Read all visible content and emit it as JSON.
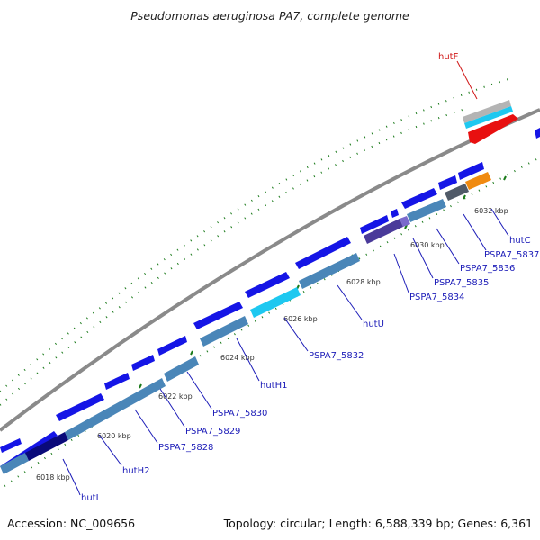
{
  "title": "Pseudomonas aeruginosa PA7, complete genome",
  "footer": {
    "accession": "Accession: NC_009656",
    "summary": "Topology: circular; Length: 6,588,339 bp; Genes: 6,361"
  },
  "colors": {
    "backbone": "#8a8a8a",
    "forward_gene": "#1515e6",
    "reverse_gene": "#4a86b8",
    "highlight_cyan": "#1ec8f0",
    "dark_navy": "#0a0a7a",
    "purple": "#4a3a9a",
    "dark_gray": "#505a68",
    "orange": "#f08a10",
    "red": "#e81010",
    "light_gray": "#b4b4b4",
    "tick_green": "#1a7a1a",
    "label_blue": "#1c1cb8",
    "label_red": "#d01818"
  },
  "scale_ticks": [
    {
      "label": "6018 kbp"
    },
    {
      "label": "6020 kbp"
    },
    {
      "label": "6022 kbp"
    },
    {
      "label": "6024 kbp"
    },
    {
      "label": "6026 kbp"
    },
    {
      "label": "6028 kbp"
    },
    {
      "label": "6030 kbp"
    },
    {
      "label": "6032 kbp"
    }
  ],
  "gene_labels": [
    {
      "text": "hutI",
      "color": "blue"
    },
    {
      "text": "hutH2",
      "color": "blue"
    },
    {
      "text": "PSPA7_5828",
      "color": "blue"
    },
    {
      "text": "PSPA7_5829",
      "color": "blue"
    },
    {
      "text": "PSPA7_5830",
      "color": "blue"
    },
    {
      "text": "hutH1",
      "color": "blue"
    },
    {
      "text": "PSPA7_5832",
      "color": "blue"
    },
    {
      "text": "hutU",
      "color": "blue"
    },
    {
      "text": "PSPA7_5834",
      "color": "blue"
    },
    {
      "text": "PSPA7_5835",
      "color": "blue"
    },
    {
      "text": "PSPA7_5836",
      "color": "blue"
    },
    {
      "text": "PSPA7_5837",
      "color": "blue"
    },
    {
      "text": "hutC",
      "color": "blue"
    },
    {
      "text": "hutF",
      "color": "red"
    }
  ]
}
